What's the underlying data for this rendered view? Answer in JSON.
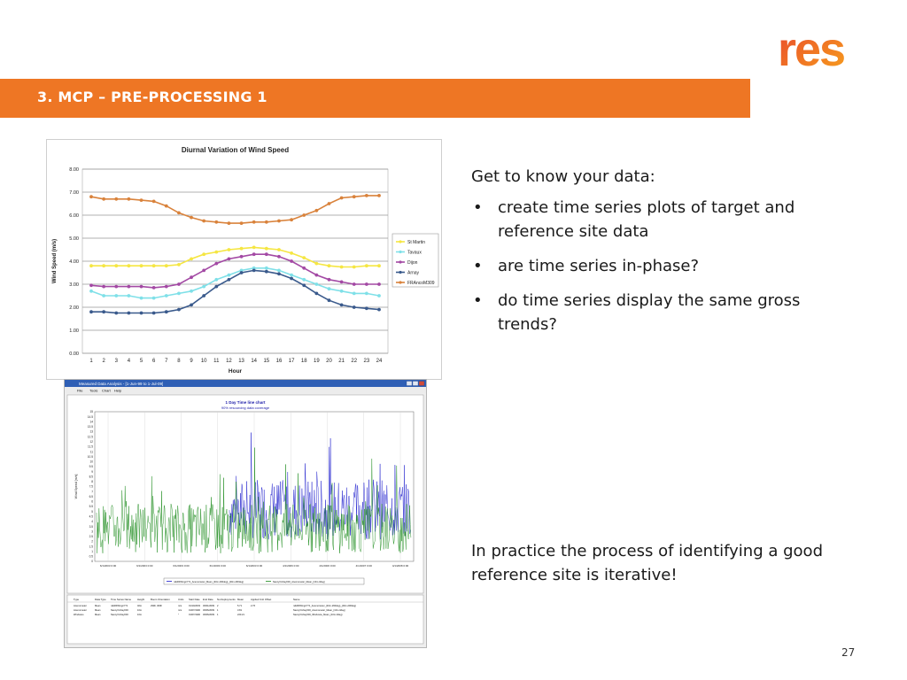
{
  "logo": {
    "text": "res",
    "gradient": [
      "#e8452c",
      "#f7a01d"
    ]
  },
  "banner": {
    "title": "3.   MCP – PRE-PROCESSING 1",
    "color": "#ee7624"
  },
  "intro": "Get to know your data:",
  "bullets": [
    "create time series plots of target and reference site data",
    "are time series in-phase?",
    "do time series display the same gross trends?"
  ],
  "practice": "In practice the process of identifying a good reference site is iterative!",
  "page_number": "27",
  "chart_data": [
    {
      "type": "line",
      "title": "Diurnal Variation of Wind Speed",
      "xlabel": "Hour",
      "ylabel": "Wind Speed (m/s)",
      "categories": [
        "1",
        "2",
        "3",
        "4",
        "5",
        "6",
        "7",
        "8",
        "9",
        "10",
        "11",
        "12",
        "13",
        "14",
        "15",
        "16",
        "17",
        "18",
        "19",
        "20",
        "21",
        "22",
        "23",
        "24"
      ],
      "yticks": [
        "0.00",
        "1.00",
        "2.00",
        "3.00",
        "4.00",
        "5.00",
        "6.00",
        "7.00",
        "8.00"
      ],
      "ylim": [
        0,
        8
      ],
      "grid": true,
      "legend_position": "right",
      "series": [
        {
          "name": "St Martin",
          "color": "#f5e642",
          "values": [
            3.8,
            3.8,
            3.8,
            3.8,
            3.8,
            3.8,
            3.8,
            3.85,
            4.1,
            4.3,
            4.4,
            4.5,
            4.55,
            4.6,
            4.55,
            4.5,
            4.35,
            4.15,
            3.9,
            3.8,
            3.75,
            3.75,
            3.8,
            3.8
          ]
        },
        {
          "name": "Tavaux",
          "color": "#7fe0e8",
          "values": [
            2.7,
            2.5,
            2.5,
            2.5,
            2.4,
            2.4,
            2.5,
            2.6,
            2.7,
            2.9,
            3.2,
            3.4,
            3.6,
            3.7,
            3.7,
            3.6,
            3.4,
            3.2,
            3.0,
            2.8,
            2.7,
            2.6,
            2.6,
            2.5
          ]
        },
        {
          "name": "Dijon",
          "color": "#a349a4",
          "values": [
            2.95,
            2.9,
            2.9,
            2.9,
            2.9,
            2.85,
            2.9,
            3.0,
            3.3,
            3.6,
            3.9,
            4.1,
            4.2,
            4.3,
            4.3,
            4.2,
            4.0,
            3.7,
            3.4,
            3.2,
            3.1,
            3.0,
            3.0,
            3.0
          ]
        },
        {
          "name": "Arnay",
          "color": "#3a5a8c",
          "values": [
            1.8,
            1.8,
            1.75,
            1.75,
            1.75,
            1.75,
            1.8,
            1.9,
            2.1,
            2.5,
            2.9,
            3.2,
            3.5,
            3.6,
            3.55,
            3.45,
            3.25,
            2.95,
            2.6,
            2.3,
            2.1,
            2.0,
            1.95,
            1.9
          ]
        },
        {
          "name": "FRAncoM309",
          "color": "#d9823b",
          "values": [
            6.8,
            6.7,
            6.7,
            6.7,
            6.65,
            6.6,
            6.4,
            6.1,
            5.9,
            5.75,
            5.7,
            5.65,
            5.65,
            5.7,
            5.7,
            5.75,
            5.8,
            6.0,
            6.2,
            6.5,
            6.75,
            6.8,
            6.85,
            6.85
          ]
        }
      ]
    },
    {
      "type": "line",
      "window_title": "Measured Data Analysis - [1-Jun-99 to 1-Jul-09]",
      "menu": [
        "File",
        "Tools",
        "Chart",
        "Help"
      ],
      "title": "1 Day Time line chart",
      "subtitle": "90% resourcing data coverage",
      "ylabel": "Wind Speed [m/s]",
      "yticks": [
        "0",
        "0.5",
        "1",
        "1.5",
        "2",
        "2.5",
        "3",
        "3.5",
        "4",
        "4.5",
        "5",
        "5.5",
        "6",
        "6.5",
        "7",
        "7.5",
        "8",
        "8.5",
        "9",
        "9.5",
        "10",
        "10.5",
        "11",
        "11.5",
        "12",
        "12.5",
        "13",
        "13.5",
        "14",
        "14.5",
        "15"
      ],
      "ylim": [
        0,
        15
      ],
      "xticks": [
        "6/1/2003 0:00",
        "6/1/2003 0:00",
        "6/1/2003 0:00",
        "6/1/2003 0:00",
        "6/1/2003 0:00",
        "4/1/2006 0:00",
        "4/1/2006 0:00",
        "4/1/2007 0:00",
        "4/1/2008 0:00"
      ],
      "legend": [
        "n/ERFWingsYT1_Anemometer_Mean_(40m-290deg)_(40m-290deg)",
        "Nancy/Uchay003_Anemometer_Mean_(10m-0deg)"
      ],
      "series": [
        {
          "name": "Nancy/Uchay003_Anemometer_Mean_(10m-0deg)",
          "color": "#1a8a1a",
          "mean": 3.3
        },
        {
          "name": "n/ERFWingsYT1_Anemometer_Mean_(40m-290deg)_(40m-290deg)",
          "color": "#1a1acc",
          "mean": 5.2
        }
      ],
      "table": {
        "headers": [
          "Type",
          "Data Type",
          "Time Series Name",
          "Height",
          "Boom Orientation",
          "Units",
          "Start Date",
          "End Date",
          "No.Deployments",
          "Mean",
          "Applied Unit Offset",
          "Name"
        ],
        "rows": [
          [
            "Anemometer",
            "Mean",
            "n/ERFWingsYT1",
            "40m",
            "290F, 300F",
            "m/s",
            "01/10/2003",
            "30/01/2009",
            "2",
            "5.71",
            "2.76",
            "n/ERFWingsYT1_Anemometer_(40m-290deg)_(40m-290deg)"
          ],
          [
            "Anemometer",
            "Mean",
            "Nancy/Uchay003",
            "10m",
            "",
            "m/s",
            "01/07/1990",
            "30/06/2009",
            "1",
            "3.81",
            "",
            "Nancy/Uchay003_Anemometer_Mean_(10m-0deg)"
          ],
          [
            "Windvane",
            "Mean",
            "Nancy/Uchay003",
            "10m",
            "",
            "°",
            "01/07/1990",
            "30/06/2009",
            "1",
            "220.21",
            "",
            "Nancy/Uchay003_Windvane_Mean_(10m-0deg)"
          ]
        ]
      }
    }
  ]
}
